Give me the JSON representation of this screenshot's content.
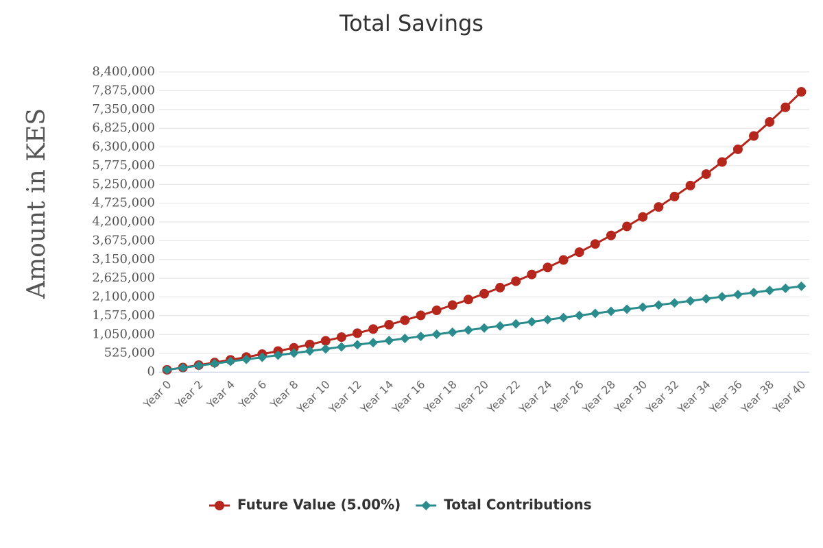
{
  "chart_data": {
    "type": "line",
    "title": "Total Savings",
    "y_label": "Amount in KES",
    "categories": [
      "Year 0",
      null,
      "Year 2",
      null,
      "Year 4",
      null,
      "Year 6",
      null,
      "Year 8",
      null,
      "Year 10",
      null,
      "Year 12",
      null,
      "Year 14",
      null,
      "Year 16",
      null,
      "Year 18",
      null,
      "Year 20",
      null,
      "Year 22",
      null,
      "Year 24",
      null,
      "Year 26",
      null,
      "Year 28",
      null,
      "Year 30",
      null,
      "Year 32",
      null,
      "Year 34",
      null,
      "Year 36",
      null,
      "Year 38",
      null,
      "Year 40"
    ],
    "series": [
      {
        "name": "Future Value (5.00%)",
        "color": "#b5271d",
        "marker": "circle",
        "values": [
          60000,
          124000,
          192000,
          263000,
          338000,
          416000,
          498000,
          585000,
          675000,
          770000,
          870000,
          975000,
          1085000,
          1201000,
          1323000,
          1450000,
          1584000,
          1725000,
          1872000,
          2027000,
          2190000,
          2361000,
          2541000,
          2729000,
          2927000,
          3135000,
          3353000,
          3582000,
          3823000,
          4075000,
          4340000,
          4619000,
          4911000,
          5218000,
          5540000,
          5879000,
          6234000,
          6607000,
          6999000,
          7411000,
          7843000
        ]
      },
      {
        "name": "Total Contributions",
        "color": "#2a8c8c",
        "marker": "diamond",
        "values": [
          60000,
          118500,
          177000,
          235500,
          294000,
          352500,
          411000,
          469500,
          528000,
          586500,
          645000,
          703500,
          762000,
          820500,
          879000,
          937500,
          996000,
          1054500,
          1113000,
          1171500,
          1230000,
          1288500,
          1347000,
          1405500,
          1464000,
          1522500,
          1581000,
          1639500,
          1698000,
          1756500,
          1815000,
          1873500,
          1932000,
          1990500,
          2049000,
          2107500,
          2166000,
          2224500,
          2283000,
          2341500,
          2400000
        ]
      }
    ],
    "ylim": [
      0,
      8400000
    ],
    "yticks": [
      0,
      {
        "value": 525000,
        "label": "525,000"
      },
      {
        "value": 1050000,
        "label": "1,050,000"
      },
      {
        "value": 1575000,
        "label": "1,575,000"
      },
      {
        "value": 2100000,
        "label": "2,100,000"
      },
      {
        "value": 2625000,
        "label": "2,625,000"
      },
      {
        "value": 3150000,
        "label": "3,150,000"
      },
      {
        "value": 3675000,
        "label": "3,675,000"
      },
      {
        "value": 4200000,
        "label": "4,200,000"
      },
      {
        "value": 4725000,
        "label": "4,725,000"
      },
      {
        "value": 5250000,
        "label": "5,250,000"
      },
      {
        "value": 5775000,
        "label": "5,775,000"
      },
      {
        "value": 6300000,
        "label": "6,300,000"
      },
      {
        "value": 6825000,
        "label": "6,825,000"
      },
      {
        "value": 7350000,
        "label": "7,350,000"
      },
      {
        "value": 7875000,
        "label": "7,875,000"
      },
      {
        "value": 8400000,
        "label": "8,400,000"
      }
    ],
    "grid": true,
    "legend": "bottom"
  }
}
